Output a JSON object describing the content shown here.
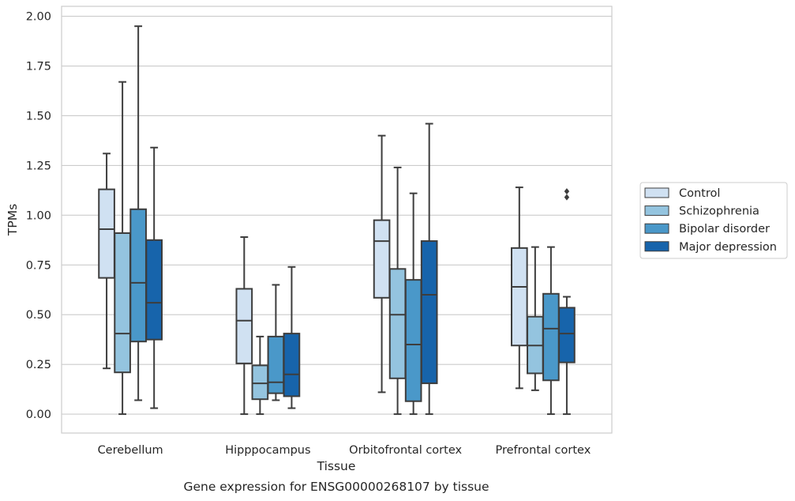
{
  "chart_data": {
    "type": "box",
    "xlabel": "Tissue",
    "ylabel": "TPMs",
    "caption": "Gene expression for ENSG00000268107 by tissue",
    "ylim": [
      -0.095,
      2.05
    ],
    "yticks": [
      "0.00",
      "0.25",
      "0.50",
      "0.75",
      "1.00",
      "1.25",
      "1.50",
      "1.75",
      "2.00"
    ],
    "grid": true,
    "legend_position": "right",
    "categories": [
      "Cerebellum",
      "Hipppocampus",
      "Orbitofrontal cortex",
      "Prefrontal cortex"
    ],
    "series": [
      {
        "name": "Control",
        "color": "#d0e1f2",
        "boxes": [
          {
            "whisker_low": 0.23,
            "q1": 0.685,
            "median": 0.93,
            "q3": 1.13,
            "whisker_high": 1.31,
            "outliers": []
          },
          {
            "whisker_low": 0.0,
            "q1": 0.255,
            "median": 0.47,
            "q3": 0.63,
            "whisker_high": 0.89,
            "outliers": []
          },
          {
            "whisker_low": 0.11,
            "q1": 0.585,
            "median": 0.87,
            "q3": 0.975,
            "whisker_high": 1.4,
            "outliers": []
          },
          {
            "whisker_low": 0.13,
            "q1": 0.345,
            "median": 0.64,
            "q3": 0.835,
            "whisker_high": 1.14,
            "outliers": []
          }
        ]
      },
      {
        "name": "Schizophrenia",
        "color": "#94c4df",
        "boxes": [
          {
            "whisker_low": 0.0,
            "q1": 0.21,
            "median": 0.405,
            "q3": 0.91,
            "whisker_high": 1.67,
            "outliers": []
          },
          {
            "whisker_low": 0.0,
            "q1": 0.075,
            "median": 0.155,
            "q3": 0.245,
            "whisker_high": 0.39,
            "outliers": []
          },
          {
            "whisker_low": 0.0,
            "q1": 0.18,
            "median": 0.5,
            "q3": 0.73,
            "whisker_high": 1.24,
            "outliers": []
          },
          {
            "whisker_low": 0.12,
            "q1": 0.205,
            "median": 0.345,
            "q3": 0.49,
            "whisker_high": 0.84,
            "outliers": []
          }
        ]
      },
      {
        "name": "Bipolar disorder",
        "color": "#4a98c9",
        "boxes": [
          {
            "whisker_low": 0.07,
            "q1": 0.365,
            "median": 0.66,
            "q3": 1.03,
            "whisker_high": 1.95,
            "outliers": []
          },
          {
            "whisker_low": 0.07,
            "q1": 0.105,
            "median": 0.16,
            "q3": 0.39,
            "whisker_high": 0.65,
            "outliers": []
          },
          {
            "whisker_low": 0.0,
            "q1": 0.065,
            "median": 0.35,
            "q3": 0.675,
            "whisker_high": 1.11,
            "outliers": []
          },
          {
            "whisker_low": 0.0,
            "q1": 0.17,
            "median": 0.43,
            "q3": 0.605,
            "whisker_high": 0.84,
            "outliers": []
          }
        ]
      },
      {
        "name": "Major depression",
        "color": "#1764ab",
        "boxes": [
          {
            "whisker_low": 0.03,
            "q1": 0.375,
            "median": 0.56,
            "q3": 0.875,
            "whisker_high": 1.34,
            "outliers": []
          },
          {
            "whisker_low": 0.03,
            "q1": 0.09,
            "median": 0.2,
            "q3": 0.405,
            "whisker_high": 0.74,
            "outliers": []
          },
          {
            "whisker_low": 0.0,
            "q1": 0.155,
            "median": 0.6,
            "q3": 0.87,
            "whisker_high": 1.46,
            "outliers": []
          },
          {
            "whisker_low": 0.0,
            "q1": 0.26,
            "median": 0.405,
            "q3": 0.535,
            "whisker_high": 0.59,
            "outliers": [
              1.09,
              1.12
            ]
          }
        ]
      }
    ]
  }
}
